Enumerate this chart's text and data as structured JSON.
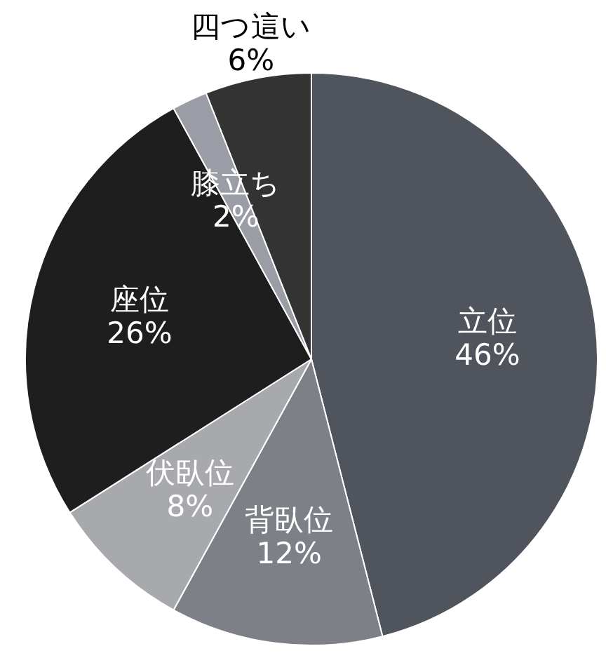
{
  "chart_data": {
    "type": "pie",
    "categories": [
      "立位",
      "背臥位",
      "伏臥位",
      "座位",
      "膝立ち",
      "四つ這い"
    ],
    "values": [
      46,
      12,
      8,
      26,
      2,
      6
    ],
    "colors": [
      "#50545c",
      "#7d8087",
      "#a8a9ac",
      "#1e1e1e",
      "#9a9ca6",
      "#333333"
    ],
    "value_labels": [
      "46%",
      "12%",
      "8%",
      "26%",
      "2%",
      "6%"
    ]
  }
}
